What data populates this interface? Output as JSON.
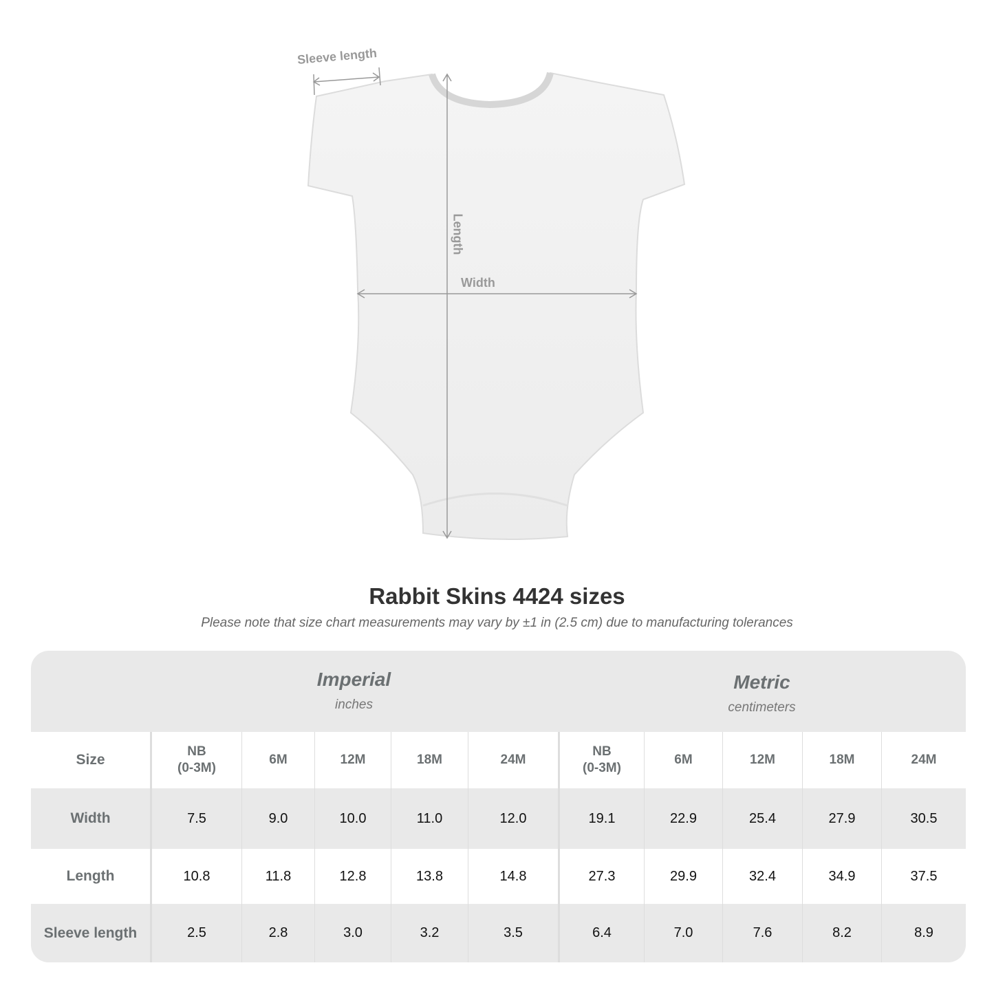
{
  "garment_labels": {
    "sleeve_length": "Sleeve length",
    "length": "Length",
    "width": "Width"
  },
  "title": "Rabbit Skins 4424 sizes",
  "note": "Please note that size chart measurements may vary by ±1 in (2.5 cm) due to manufacturing tolerances",
  "table": {
    "groups": [
      {
        "title": "Imperial",
        "subtitle": "inches"
      },
      {
        "title": "Metric",
        "subtitle": "centimeters"
      }
    ],
    "size_label": "Size",
    "sizes": [
      "NB\n(0-3M)",
      "6M",
      "12M",
      "18M",
      "24M",
      "NB\n(0-3M)",
      "6M",
      "12M",
      "18M",
      "24M"
    ],
    "rows": [
      {
        "label": "Width",
        "values": [
          "7.5",
          "9.0",
          "10.0",
          "11.0",
          "12.0",
          "19.1",
          "22.9",
          "25.4",
          "27.9",
          "30.5"
        ]
      },
      {
        "label": "Length",
        "values": [
          "10.8",
          "11.8",
          "12.8",
          "13.8",
          "14.8",
          "27.3",
          "29.9",
          "32.4",
          "34.9",
          "37.5"
        ]
      },
      {
        "label": "Sleeve length",
        "values": [
          "2.5",
          "2.8",
          "3.0",
          "3.2",
          "3.5",
          "6.4",
          "7.0",
          "7.6",
          "8.2",
          "8.9"
        ]
      }
    ]
  },
  "colors": {
    "table_bg": "#e9e9e9",
    "header_text": "#6b7072",
    "measure_line": "#999999"
  }
}
